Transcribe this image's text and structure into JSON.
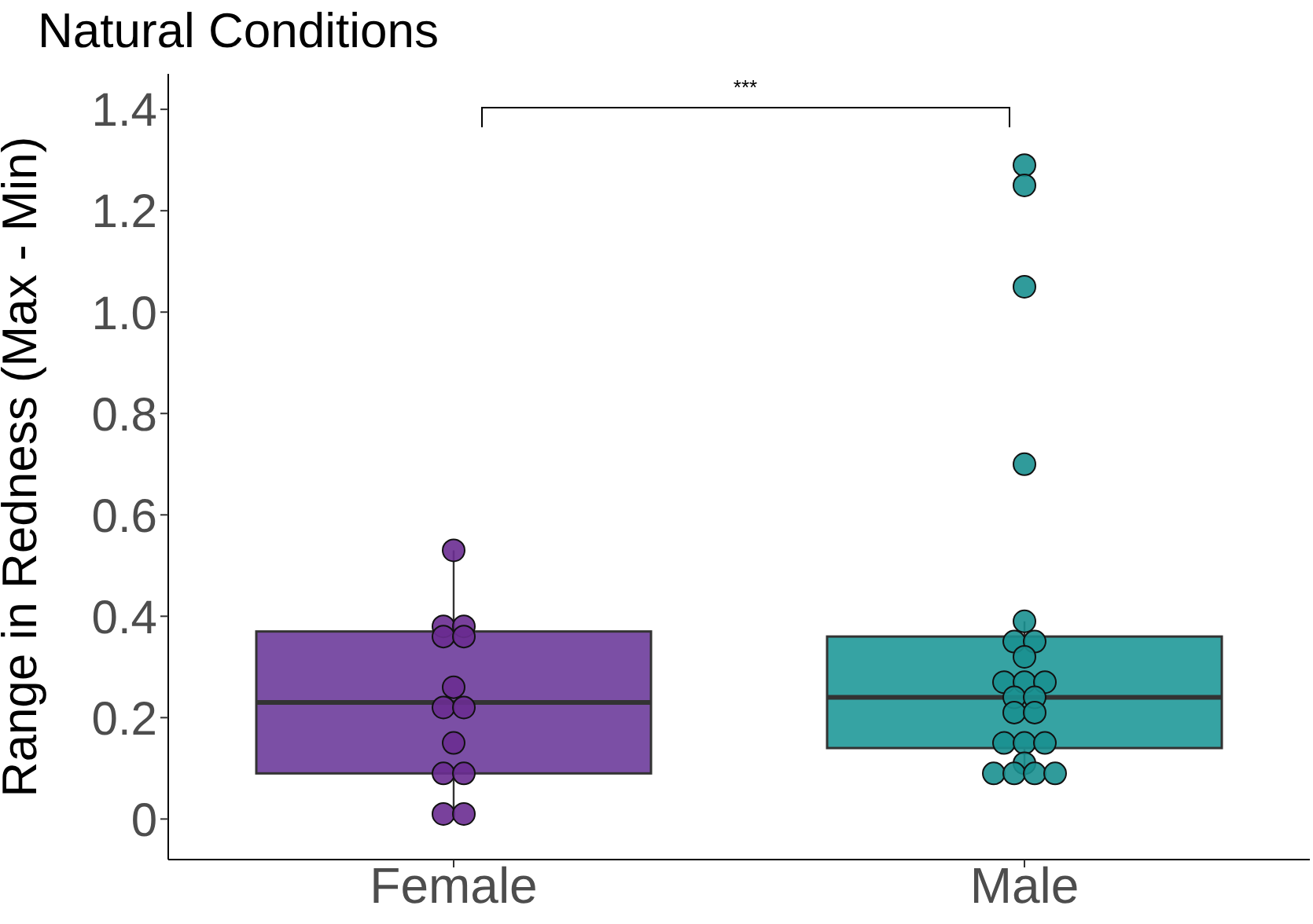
{
  "chart_data": {
    "type": "box",
    "title": "Natural Conditions",
    "ylabel": "Range in Redness (Max - Min)",
    "categories": [
      "Female",
      "Male"
    ],
    "colors": [
      "#7b4fa5",
      "#36a3a3"
    ],
    "boxes": [
      {
        "low": 0.01,
        "q1": 0.09,
        "median": 0.23,
        "q3": 0.37,
        "high": 0.53
      },
      {
        "low": 0.09,
        "q1": 0.14,
        "median": 0.24,
        "q3": 0.36,
        "high": 0.39
      }
    ],
    "ylim": [
      -0.08,
      1.47
    ],
    "yticks": [
      0,
      {
        "value": 0.2,
        "label": "0.2"
      },
      {
        "value": 0.4,
        "label": "0.4"
      },
      {
        "value": 0.6,
        "label": "0.6"
      },
      {
        "value": 0.8,
        "label": "0.8"
      },
      {
        "value": 1,
        "label": "1.0"
      },
      {
        "value": 1.2,
        "label": "1.2"
      },
      {
        "value": 1.4,
        "label": "1.4"
      }
    ],
    "annotations": [
      "***"
    ],
    "marker": "circle",
    "series": [
      {
        "type": "scatter",
        "color": "#6a2c91",
        "x": [
          "Female",
          "Female",
          "Female",
          "Female",
          "Female",
          "Female",
          "Female",
          "Female",
          "Female",
          "Female",
          "Female",
          "Female",
          "Female"
        ],
        "values": [
          0.53,
          0.38,
          0.38,
          0.36,
          0.36,
          0.26,
          0.22,
          0.22,
          0.15,
          0.09,
          0.09,
          0.01,
          0.01
        ]
      },
      {
        "type": "scatter",
        "color": "#1a9090",
        "x": [
          "Male",
          "Male",
          "Male",
          "Male",
          "Male",
          "Male",
          "Male",
          "Male",
          "Male",
          "Male",
          "Male",
          "Male",
          "Male",
          "Male",
          "Male",
          "Male",
          "Male",
          "Male",
          "Male",
          "Male",
          "Male",
          "Male",
          "Male"
        ],
        "values": [
          1.29,
          1.25,
          1.05,
          0.7,
          0.39,
          0.35,
          0.35,
          0.32,
          0.27,
          0.27,
          0.27,
          0.24,
          0.24,
          0.21,
          0.21,
          0.15,
          0.15,
          0.15,
          0.11,
          0.09,
          0.09,
          0.09,
          0.09
        ]
      }
    ]
  }
}
